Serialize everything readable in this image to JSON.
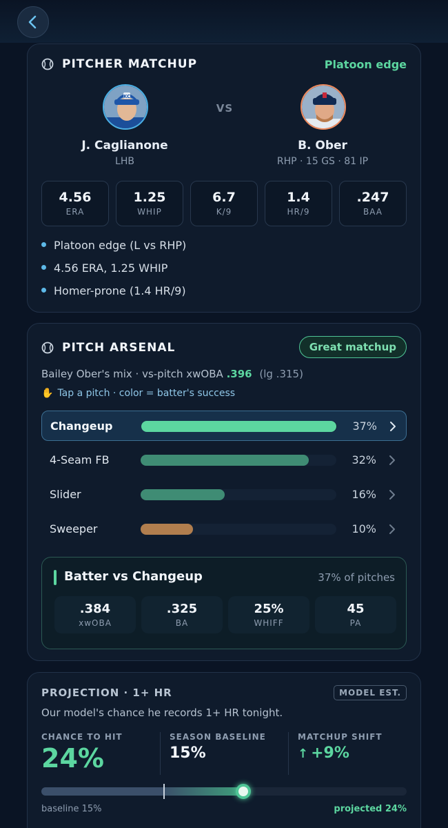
{
  "matchup": {
    "title": "PITCHER MATCHUP",
    "edge_label": "Platoon edge",
    "vs": "VS",
    "batter": {
      "name": "J. Caglianone",
      "sub": "LHB",
      "logo": "KC"
    },
    "pitcher": {
      "name": "B. Ober",
      "sub": "RHP · 15 GS · 81 IP"
    },
    "stats": [
      {
        "value": "4.56",
        "label": "ERA"
      },
      {
        "value": "1.25",
        "label": "WHIP"
      },
      {
        "value": "6.7",
        "label": "K/9"
      },
      {
        "value": "1.4",
        "label": "HR/9"
      },
      {
        "value": ".247",
        "label": "BAA"
      }
    ],
    "bullets": [
      "Platoon edge (L vs RHP)",
      "4.56 ERA, 1.25 WHIP",
      "Homer-prone (1.4 HR/9)"
    ]
  },
  "arsenal": {
    "title": "PITCH ARSENAL",
    "pill": "Great matchup",
    "mix_prefix": "Bailey Ober's mix · vs-pitch xwOBA",
    "mix_value": ".396",
    "mix_lg": "(lg .315)",
    "hint": "Tap a pitch · color = batter's success",
    "pitches": [
      {
        "name": "Changeup",
        "pct_label": "37%",
        "share": 0.37,
        "color": "#5cd6a0",
        "selected": true
      },
      {
        "name": "4-Seam FB",
        "pct_label": "32%",
        "share": 0.32,
        "color": "#3f8c74",
        "selected": false
      },
      {
        "name": "Slider",
        "pct_label": "16%",
        "share": 0.16,
        "color": "#3f8c74",
        "selected": false
      },
      {
        "name": "Sweeper",
        "pct_label": "10%",
        "share": 0.1,
        "color": "#b17e4e",
        "selected": false
      }
    ],
    "detail": {
      "title": "Batter vs Changeup",
      "share_label": "37% of pitches",
      "stats": [
        {
          "value": ".384",
          "label": "xwOBA",
          "highlight": true
        },
        {
          "value": ".325",
          "label": "BA"
        },
        {
          "value": "25%",
          "label": "WHIFF"
        },
        {
          "value": "45",
          "label": "PA"
        }
      ]
    }
  },
  "projection": {
    "title": "PROJECTION · 1+ HR",
    "badge": "MODEL EST.",
    "desc": "Our model's chance he records 1+ HR tonight.",
    "chance_label": "CHANCE TO HIT",
    "chance_value": "24%",
    "baseline_label": "SEASON BASELINE",
    "baseline_value": "15%",
    "shift_label": "MATCHUP SHIFT",
    "shift_value": "+9%",
    "baseline_caption": "baseline 15%",
    "projected_caption": "projected 24%",
    "baseline_fraction": 0.15,
    "projected_fraction": 0.24
  }
}
